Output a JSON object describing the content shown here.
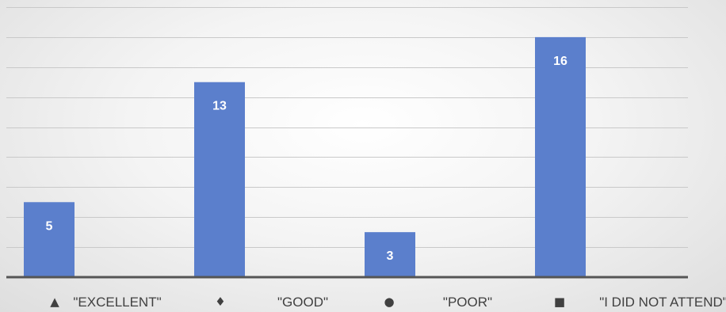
{
  "chart_data": {
    "type": "bar",
    "categories": [
      "\"EXCELLENT\"",
      "\"GOOD\"",
      "\"POOR\"",
      "\"I DID NOT ATTEND\""
    ],
    "category_markers": [
      "▲",
      "♦",
      "●",
      "■"
    ],
    "values": [
      5,
      13,
      3,
      16
    ],
    "title": "",
    "xlabel": "",
    "ylabel": "",
    "ylim": [
      0,
      18
    ],
    "grid": true,
    "show_data_labels": true,
    "y_tick_labels_visible": false,
    "legend": "none",
    "colors": {
      "bar": "#5b7fcc",
      "grid": "#c9c9c9",
      "axis": "#555555",
      "label": "#ffffff",
      "category_text": "#404040"
    }
  }
}
